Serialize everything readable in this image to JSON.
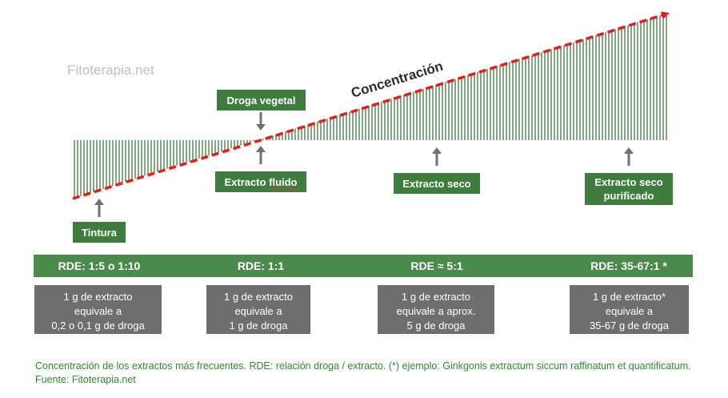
{
  "watermark": "Fitoterapia.net",
  "concentration_label": "Concentración",
  "labels": {
    "droga_vegetal": "Droga vegetal",
    "extracto_fluido_a": "Extracto ",
    "extracto_fluido_b": "fluido",
    "extracto_seco": "Extracto seco",
    "extracto_seco_purificado_1": "Extracto seco",
    "extracto_seco_purificado_2": "purificado",
    "tintura": "Tintura"
  },
  "rde": [
    {
      "label": "RDE: 1:5 o 1:10"
    },
    {
      "label": "RDE: 1:1"
    },
    {
      "label": "RDE ≈ 5:1"
    },
    {
      "label": "RDE: 35-67:1 *"
    }
  ],
  "equivalences": [
    {
      "line1": "1 g de extracto",
      "line2": "equivale a",
      "line3": "0,2 o 0,1 g de droga"
    },
    {
      "line1": "1 g de extracto",
      "line2": "equivale a",
      "line3": "1 g de droga"
    },
    {
      "line1": "1 g de extracto",
      "line2": "equivale a aprox.",
      "line3": "5 g de droga"
    },
    {
      "line1": "1 g de extracto*",
      "line2": "equivale a",
      "line3": "35-67 g de droga"
    }
  ],
  "caption": "Concentración de los extractos más frecuentes. RDE: relación droga / extracto. (*) ejemplo: Ginkgonis extractum siccum raffinatum et quantificatum. Fuente: Fitoterapia.net",
  "colors": {
    "green": "#3f7d3f",
    "hatch": "#2f6b2f",
    "red_dash": "#e0201f",
    "gray": "#6e6e6e",
    "caption_green": "#2e8b2e"
  }
}
